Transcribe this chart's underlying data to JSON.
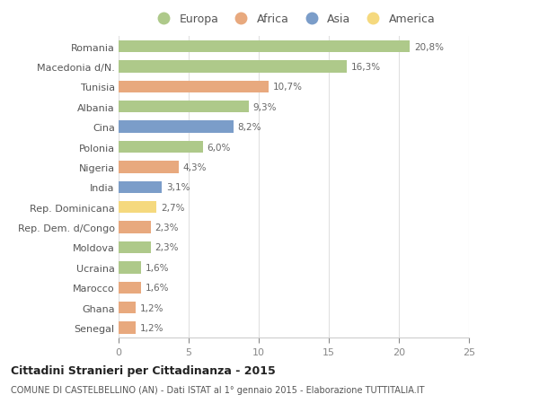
{
  "categories": [
    "Romania",
    "Macedonia d/N.",
    "Tunisia",
    "Albania",
    "Cina",
    "Polonia",
    "Nigeria",
    "India",
    "Rep. Dominicana",
    "Rep. Dem. d/Congo",
    "Moldova",
    "Ucraina",
    "Marocco",
    "Ghana",
    "Senegal"
  ],
  "values": [
    20.8,
    16.3,
    10.7,
    9.3,
    8.2,
    6.0,
    4.3,
    3.1,
    2.7,
    2.3,
    2.3,
    1.6,
    1.6,
    1.2,
    1.2
  ],
  "labels": [
    "20,8%",
    "16,3%",
    "10,7%",
    "9,3%",
    "8,2%",
    "6,0%",
    "4,3%",
    "3,1%",
    "2,7%",
    "2,3%",
    "2,3%",
    "1,6%",
    "1,6%",
    "1,2%",
    "1,2%"
  ],
  "continents": [
    "Europa",
    "Europa",
    "Africa",
    "Europa",
    "Asia",
    "Europa",
    "Africa",
    "Asia",
    "America",
    "Africa",
    "Europa",
    "Europa",
    "Africa",
    "Africa",
    "Africa"
  ],
  "colors": {
    "Europa": "#aec98a",
    "Africa": "#e8a97e",
    "Asia": "#7b9dc9",
    "America": "#f5d97e"
  },
  "legend_order": [
    "Europa",
    "Africa",
    "Asia",
    "America"
  ],
  "xlim": [
    0,
    25
  ],
  "xticks": [
    0,
    5,
    10,
    15,
    20,
    25
  ],
  "title1": "Cittadini Stranieri per Cittadinanza - 2015",
  "title2": "COMUNE DI CASTELBELLINO (AN) - Dati ISTAT al 1° gennaio 2015 - Elaborazione TUTTITALIA.IT",
  "background_color": "#ffffff",
  "grid_color": "#e0e0e0"
}
